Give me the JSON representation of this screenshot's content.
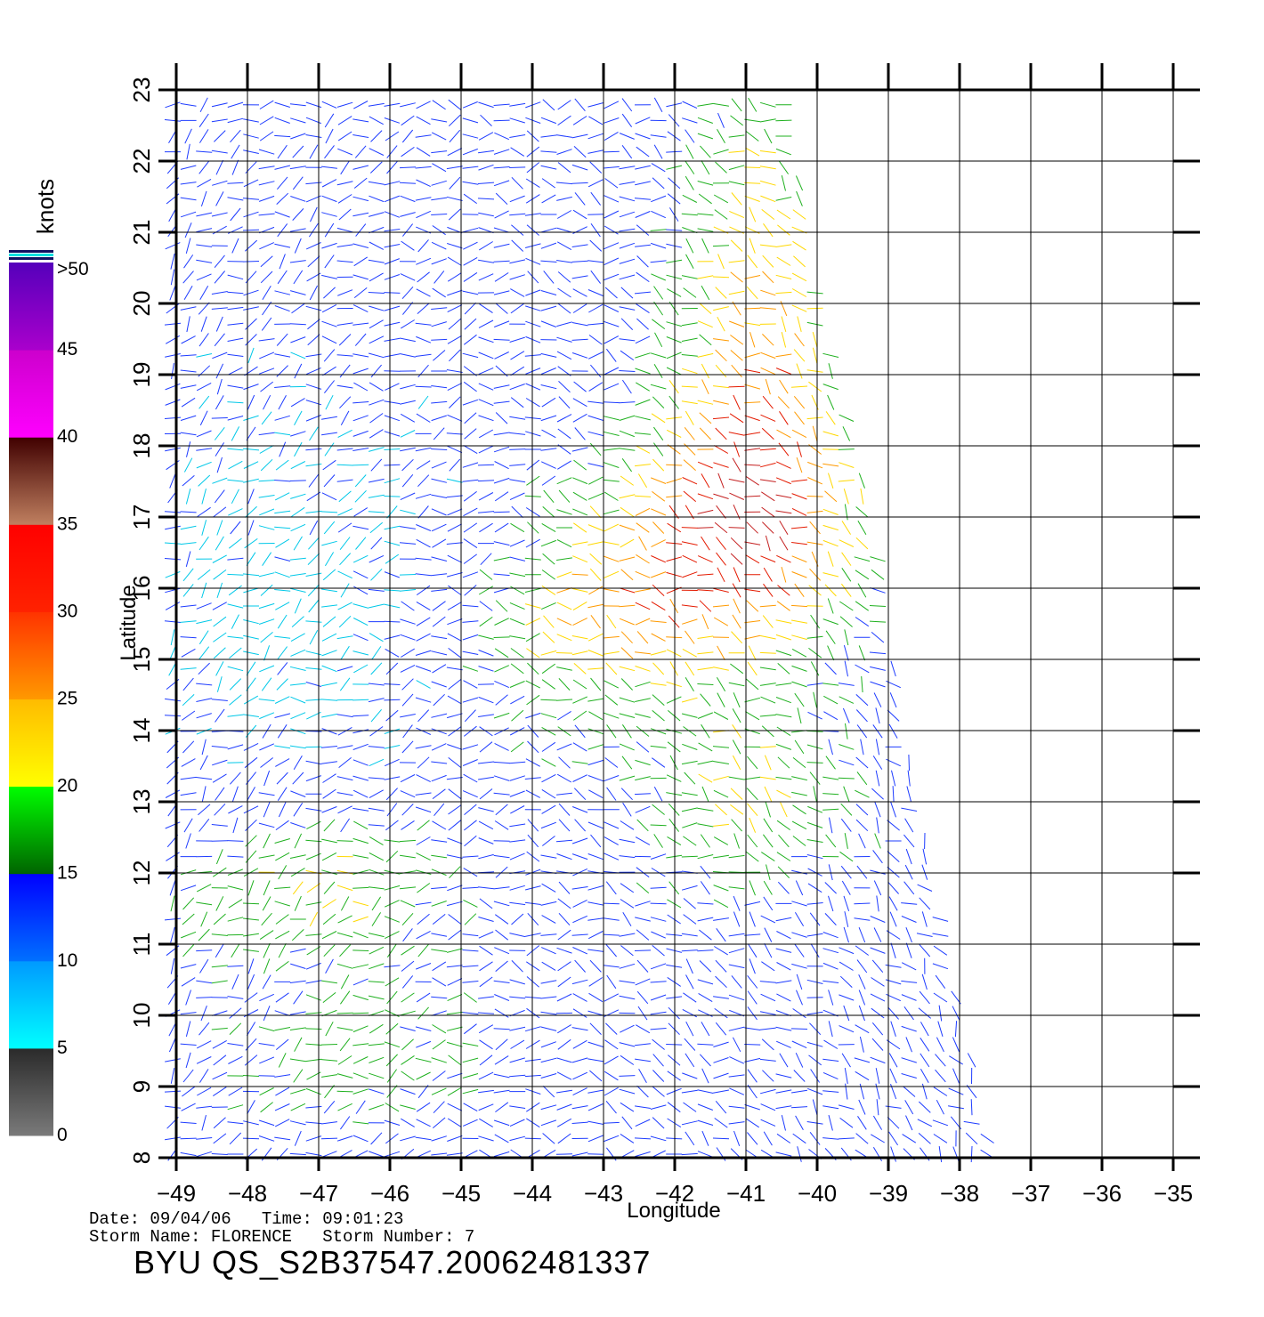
{
  "map": {
    "lon_ticks": [
      -49,
      -48,
      -47,
      -46,
      -45,
      -44,
      -43,
      -42,
      -41,
      -40,
      -39,
      -38,
      -37,
      -36,
      -35
    ],
    "lat_ticks": [
      8,
      9,
      10,
      11,
      12,
      13,
      14,
      15,
      16,
      17,
      18,
      19,
      20,
      21,
      22,
      23
    ],
    "xlabel": "Longitude",
    "ylabel": "Latitude",
    "lon_range": [
      -49,
      -35
    ],
    "lat_range": [
      8,
      23
    ],
    "grid": true,
    "swath_east_edge": [
      [
        23,
        -40.4
      ],
      [
        20,
        -40.0
      ],
      [
        17,
        -39.2
      ],
      [
        14,
        -38.8
      ],
      [
        11,
        -38.2
      ],
      [
        8,
        -37.5
      ]
    ],
    "vector_units": "knots"
  },
  "legend": {
    "units": "knots",
    "tick_labels": [
      ">50",
      "45",
      "40",
      "35",
      "30",
      "25",
      "20",
      "15",
      "10",
      "5",
      "0"
    ],
    "bands": [
      {
        "range": "0-5",
        "colors": [
          "#7a7a7a",
          "#2a2a2a"
        ]
      },
      {
        "range": "5-10",
        "colors": [
          "#00ffff",
          "#0099ff"
        ]
      },
      {
        "range": "10-15",
        "colors": [
          "#0070ff",
          "#0000ff"
        ]
      },
      {
        "range": "15-20",
        "colors": [
          "#006400",
          "#00ff00"
        ]
      },
      {
        "range": "20-25",
        "colors": [
          "#ffff00",
          "#ffbb00"
        ]
      },
      {
        "range": "25-30",
        "colors": [
          "#ff9900",
          "#ff3300"
        ]
      },
      {
        "range": "30-35",
        "colors": [
          "#ff2200",
          "#ff0000"
        ]
      },
      {
        "range": "35-40",
        "colors": [
          "#c08060",
          "#400000"
        ]
      },
      {
        "range": "40-45",
        "colors": [
          "#ff00ff",
          "#cc00cc"
        ]
      },
      {
        "range": "45-50",
        "colors": [
          "#aa00cc",
          "#5500bb"
        ]
      }
    ]
  },
  "footer": {
    "line1": "Date: 09/04/06   Time: 09:01:23",
    "line2": "Storm Name: FLORENCE   Storm Number: 7",
    "title": "BYU QS_S2B37547.20062481337"
  }
}
